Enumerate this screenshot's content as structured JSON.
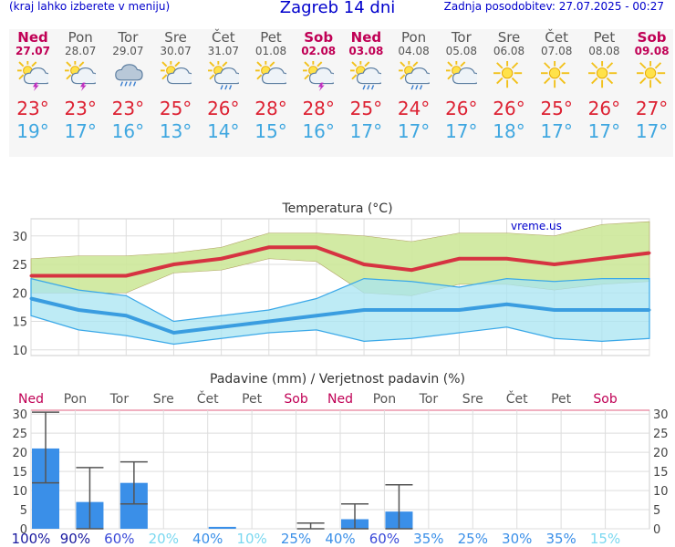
{
  "header": {
    "menu_hint": "(kraj lahko izberete v meniju)",
    "title": "Zagreb 14 dni",
    "updated": "Zadnja posodobitev: 27.07.2025 - 00:27"
  },
  "days": [
    {
      "name": "Ned",
      "date": "27.07",
      "weekend": true,
      "icon": "sun-cloud-lightning-icon",
      "max": "23°",
      "min": "19°"
    },
    {
      "name": "Pon",
      "date": "28.07",
      "weekend": false,
      "icon": "sun-cloud-lightning-icon",
      "max": "23°",
      "min": "17°"
    },
    {
      "name": "Tor",
      "date": "29.07",
      "weekend": false,
      "icon": "cloud-rain-icon",
      "max": "23°",
      "min": "16°"
    },
    {
      "name": "Sre",
      "date": "30.07",
      "weekend": false,
      "icon": "sun-cloud-icon",
      "max": "25°",
      "min": "13°"
    },
    {
      "name": "Čet",
      "date": "31.07",
      "weekend": false,
      "icon": "sun-cloud-rain-icon",
      "max": "26°",
      "min": "14°"
    },
    {
      "name": "Pet",
      "date": "01.08",
      "weekend": false,
      "icon": "sun-cloud-icon",
      "max": "28°",
      "min": "15°"
    },
    {
      "name": "Sob",
      "date": "02.08",
      "weekend": true,
      "icon": "sun-cloud-lightning-icon",
      "max": "28°",
      "min": "16°"
    },
    {
      "name": "Ned",
      "date": "03.08",
      "weekend": true,
      "icon": "sun-cloud-rain-icon",
      "max": "25°",
      "min": "17°"
    },
    {
      "name": "Pon",
      "date": "04.08",
      "weekend": false,
      "icon": "sun-cloud-rain-icon",
      "max": "24°",
      "min": "17°"
    },
    {
      "name": "Tor",
      "date": "05.08",
      "weekend": false,
      "icon": "sun-cloud-icon",
      "max": "26°",
      "min": "17°"
    },
    {
      "name": "Sre",
      "date": "06.08",
      "weekend": false,
      "icon": "sun-icon",
      "max": "26°",
      "min": "18°"
    },
    {
      "name": "Čet",
      "date": "07.08",
      "weekend": false,
      "icon": "sun-icon",
      "max": "25°",
      "min": "17°"
    },
    {
      "name": "Pet",
      "date": "08.08",
      "weekend": false,
      "icon": "sun-icon",
      "max": "26°",
      "min": "17°"
    },
    {
      "name": "Sob",
      "date": "09.08",
      "weekend": true,
      "icon": "sun-icon",
      "max": "27°",
      "min": "17°"
    }
  ],
  "colors": {
    "weekday": "#555555",
    "weekend": "#c00055",
    "max_temp": "#dd2233",
    "min_temp": "#3fa7e0",
    "max_band": "#cde89a",
    "min_band": "#a8e4f2",
    "overlap_band": "#86d48a",
    "max_line": "#d63341",
    "min_line": "#3a9de0",
    "precip_bar": "#3a8fe8",
    "error_bar": "#555555"
  },
  "chart_data": [
    {
      "type": "line",
      "title": "Temperatura (°C)",
      "watermark": "vreme.us",
      "categories": [
        "27.07",
        "28.07",
        "29.07",
        "30.07",
        "31.07",
        "01.08",
        "02.08",
        "03.08",
        "04.08",
        "05.08",
        "06.08",
        "07.08",
        "08.08",
        "09.08"
      ],
      "ylim": [
        9,
        33
      ],
      "yticks": [
        10,
        15,
        20,
        25,
        30
      ],
      "grid": true,
      "series": [
        {
          "role": "max",
          "values": [
            23,
            23,
            23,
            25,
            26,
            28,
            28,
            25,
            24,
            26,
            26,
            25,
            26,
            27
          ],
          "band_low": [
            20,
            20,
            20,
            23.5,
            24,
            26,
            25.5,
            20,
            19.5,
            21.5,
            21.5,
            20.5,
            21.5,
            22
          ],
          "band_high": [
            26,
            26.5,
            26.5,
            27,
            28,
            30.5,
            30.5,
            30,
            29,
            30.5,
            30.5,
            30,
            32,
            32.5
          ]
        },
        {
          "role": "min",
          "values": [
            19,
            17,
            16,
            13,
            14,
            15,
            16,
            17,
            17,
            17,
            18,
            17,
            17,
            17
          ],
          "band_low": [
            16,
            13.5,
            12.5,
            11,
            12,
            13,
            13.5,
            11.5,
            12,
            13,
            14,
            12,
            11.5,
            12
          ],
          "band_high": [
            22.5,
            20.5,
            19.5,
            15,
            16,
            17,
            19,
            22.5,
            22,
            21,
            22.5,
            22,
            22.5,
            22.5
          ]
        }
      ]
    },
    {
      "type": "bar",
      "title": "Padavine (mm) / Verjetnost padavin (%)",
      "categories": [
        "Ned",
        "Pon",
        "Tor",
        "Sre",
        "Čet",
        "Pet",
        "Sob",
        "Ned",
        "Pon",
        "Tor",
        "Sre",
        "Čet",
        "Pet",
        "Sob"
      ],
      "category_weekend": [
        true,
        false,
        false,
        false,
        false,
        false,
        true,
        true,
        false,
        false,
        false,
        false,
        false,
        true
      ],
      "values": [
        21,
        7,
        12,
        0,
        0.5,
        0,
        0,
        2.5,
        4.5,
        0,
        0,
        0,
        0,
        0
      ],
      "error_low": [
        12,
        0,
        6.5,
        null,
        null,
        null,
        0,
        0,
        0,
        null,
        null,
        null,
        null,
        null
      ],
      "error_high": [
        30.5,
        16,
        17.5,
        null,
        null,
        null,
        1.5,
        6.5,
        11.5,
        null,
        null,
        null,
        null,
        null
      ],
      "probability": [
        "100%",
        "90%",
        "60%",
        "20%",
        "40%",
        "10%",
        "25%",
        "40%",
        "60%",
        "35%",
        "25%",
        "30%",
        "35%",
        "15%"
      ],
      "prob_colors": [
        "#1a1aa0",
        "#1a1aa0",
        "#3a4ad8",
        "#7ad8f0",
        "#3a8fe8",
        "#7ad8f0",
        "#3a8fe8",
        "#3a8fe8",
        "#3a4ad8",
        "#3a8fe8",
        "#3a8fe8",
        "#3a8fe8",
        "#3a8fe8",
        "#7ad8f0"
      ],
      "ylim": [
        0,
        31
      ],
      "yticks": [
        0,
        5,
        10,
        15,
        20,
        25,
        30
      ],
      "grid": true
    }
  ]
}
